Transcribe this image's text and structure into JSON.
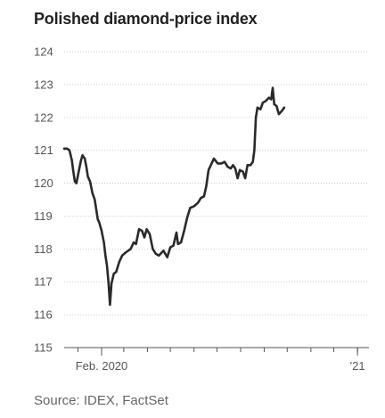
{
  "title": "Polished diamond-price index",
  "source": "Source: IDEX, FactSet",
  "colors": {
    "line": "#2a2a2a",
    "grid": "#cfcfcf",
    "axis": "#555555",
    "text": "#555555"
  },
  "chart_data": {
    "type": "line",
    "title": "Polished diamond-price index",
    "xlabel": "",
    "ylabel": "",
    "ylim": [
      115,
      124
    ],
    "yticks": [
      115,
      116,
      117,
      118,
      119,
      120,
      121,
      122,
      123,
      124
    ],
    "xlim": [
      "2019-12-14",
      "2021-01-16"
    ],
    "xtick_labels": [
      {
        "x": "2020-02-01",
        "label": "Feb. 2020"
      },
      {
        "x": "2021-01-01",
        "label": "'21"
      }
    ],
    "minor_ticks": [
      "2020-01-01",
      "2020-02-01",
      "2020-03-01",
      "2020-04-01",
      "2020-05-01",
      "2020-06-01",
      "2020-07-01",
      "2020-08-01",
      "2020-09-01",
      "2020-10-01",
      "2020-11-01",
      "2020-12-01",
      "2021-01-01"
    ],
    "grid": true,
    "series": [
      {
        "name": "",
        "points": [
          [
            "2019-12-14",
            121.05
          ],
          [
            "2019-12-18",
            121.05
          ],
          [
            "2019-12-21",
            121.0
          ],
          [
            "2019-12-24",
            120.7
          ],
          [
            "2019-12-26",
            120.35
          ],
          [
            "2019-12-28",
            120.05
          ],
          [
            "2019-12-30",
            120.0
          ],
          [
            "2020-01-02",
            120.35
          ],
          [
            "2020-01-05",
            120.7
          ],
          [
            "2020-01-07",
            120.85
          ],
          [
            "2020-01-10",
            120.75
          ],
          [
            "2020-01-12",
            120.5
          ],
          [
            "2020-01-14",
            120.2
          ],
          [
            "2020-01-17",
            120.05
          ],
          [
            "2020-01-20",
            119.7
          ],
          [
            "2020-01-23",
            119.5
          ],
          [
            "2020-01-25",
            119.2
          ],
          [
            "2020-01-27",
            118.9
          ],
          [
            "2020-01-29",
            118.8
          ],
          [
            "2020-02-01",
            118.55
          ],
          [
            "2020-02-04",
            118.2
          ],
          [
            "2020-02-06",
            117.8
          ],
          [
            "2020-02-08",
            117.5
          ],
          [
            "2020-02-10",
            117.0
          ],
          [
            "2020-02-12",
            116.3
          ],
          [
            "2020-02-14",
            116.95
          ],
          [
            "2020-02-17",
            117.25
          ],
          [
            "2020-02-20",
            117.3
          ],
          [
            "2020-02-24",
            117.6
          ],
          [
            "2020-02-28",
            117.8
          ],
          [
            "2020-03-04",
            117.9
          ],
          [
            "2020-03-10",
            118.0
          ],
          [
            "2020-03-14",
            118.2
          ],
          [
            "2020-03-17",
            118.15
          ],
          [
            "2020-03-21",
            118.6
          ],
          [
            "2020-03-25",
            118.55
          ],
          [
            "2020-03-28",
            118.35
          ],
          [
            "2020-03-31",
            118.6
          ],
          [
            "2020-04-04",
            118.45
          ],
          [
            "2020-04-08",
            118.0
          ],
          [
            "2020-04-12",
            117.85
          ],
          [
            "2020-04-16",
            117.8
          ],
          [
            "2020-04-22",
            117.95
          ],
          [
            "2020-04-27",
            117.75
          ],
          [
            "2020-05-01",
            118.05
          ],
          [
            "2020-05-05",
            118.1
          ],
          [
            "2020-05-09",
            118.5
          ],
          [
            "2020-05-11",
            118.15
          ],
          [
            "2020-05-15",
            118.2
          ],
          [
            "2020-05-19",
            118.55
          ],
          [
            "2020-05-23",
            118.95
          ],
          [
            "2020-05-27",
            119.25
          ],
          [
            "2020-06-01",
            119.3
          ],
          [
            "2020-06-06",
            119.4
          ],
          [
            "2020-06-10",
            119.55
          ],
          [
            "2020-06-14",
            119.6
          ],
          [
            "2020-06-17",
            119.9
          ],
          [
            "2020-06-20",
            120.4
          ],
          [
            "2020-06-23",
            120.55
          ],
          [
            "2020-06-27",
            120.75
          ],
          [
            "2020-07-02",
            120.6
          ],
          [
            "2020-07-07",
            120.6
          ],
          [
            "2020-07-11",
            120.65
          ],
          [
            "2020-07-15",
            120.5
          ],
          [
            "2020-07-19",
            120.45
          ],
          [
            "2020-07-22",
            120.55
          ],
          [
            "2020-07-25",
            120.45
          ],
          [
            "2020-07-28",
            120.15
          ],
          [
            "2020-07-31",
            120.4
          ],
          [
            "2020-08-04",
            120.35
          ],
          [
            "2020-08-07",
            120.15
          ],
          [
            "2020-08-10",
            120.55
          ],
          [
            "2020-08-14",
            120.55
          ],
          [
            "2020-08-17",
            120.65
          ],
          [
            "2020-08-19",
            121.0
          ],
          [
            "2020-08-21",
            122.0
          ],
          [
            "2020-08-23",
            122.3
          ],
          [
            "2020-08-27",
            122.25
          ],
          [
            "2020-08-30",
            122.45
          ],
          [
            "2020-09-03",
            122.5
          ],
          [
            "2020-09-07",
            122.6
          ],
          [
            "2020-09-10",
            122.55
          ],
          [
            "2020-09-12",
            122.9
          ],
          [
            "2020-09-14",
            122.4
          ],
          [
            "2020-09-17",
            122.35
          ],
          [
            "2020-09-20",
            122.1
          ],
          [
            "2020-09-24",
            122.2
          ],
          [
            "2020-09-27",
            122.3
          ]
        ]
      }
    ]
  }
}
